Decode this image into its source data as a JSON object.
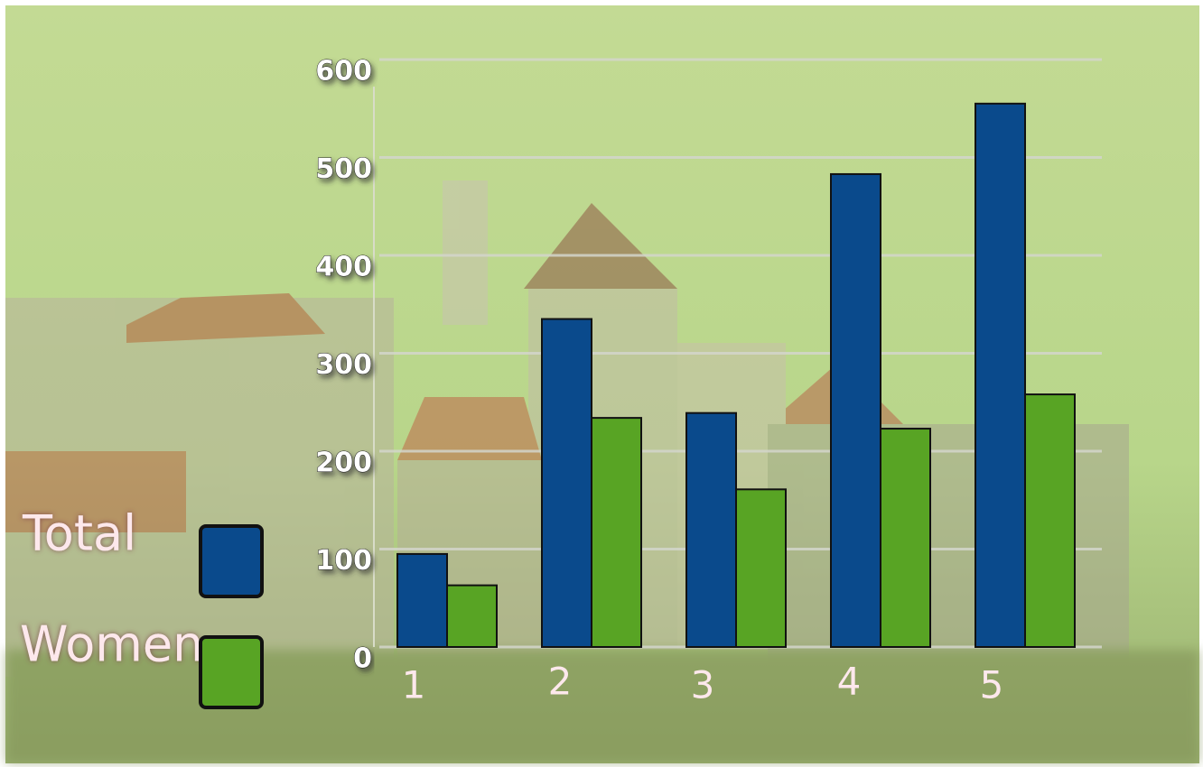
{
  "chart_data": {
    "type": "bar",
    "categories": [
      "1",
      "2",
      "3",
      "4",
      "5"
    ],
    "series": [
      {
        "name": "Total",
        "color": "#0a4a8c",
        "values": [
          95,
          335,
          239,
          483,
          555
        ]
      },
      {
        "name": "Women",
        "color": "#58a424",
        "values": [
          63,
          234,
          161,
          223,
          258
        ]
      }
    ],
    "ylim": [
      0,
      600
    ],
    "yticks": [
      0,
      100,
      200,
      300,
      400,
      500,
      600
    ],
    "grid": true
  }
}
